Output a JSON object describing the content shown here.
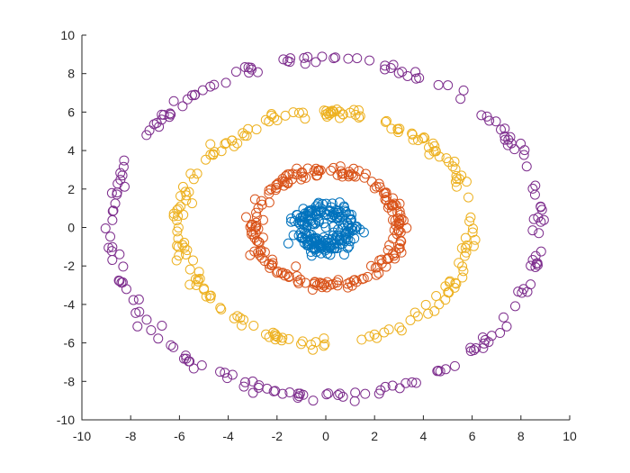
{
  "chart_data": {
    "type": "scatter",
    "title": "",
    "xlabel": "",
    "ylabel": "",
    "xlim": [
      -10,
      10
    ],
    "ylim": [
      -10,
      10
    ],
    "grid": false,
    "marker": "open-circle",
    "x_ticks": [
      -10,
      -8,
      -6,
      -4,
      -2,
      0,
      2,
      4,
      6,
      8,
      10
    ],
    "y_ticks": [
      -10,
      -8,
      -6,
      -4,
      -2,
      0,
      2,
      4,
      6,
      8,
      10
    ],
    "x_tick_labels": [
      "-10",
      "-8",
      "-6",
      "-4",
      "-2",
      "0",
      "2",
      "4",
      "6",
      "8",
      "10"
    ],
    "y_tick_labels": [
      "-10",
      "-8",
      "-6",
      "-4",
      "-2",
      "0",
      "2",
      "4",
      "6",
      "8",
      "10"
    ],
    "series": [
      {
        "color": "#0072BD",
        "center": [
          0,
          0
        ],
        "radius": 1.0,
        "spread": 0.25,
        "count": 200
      },
      {
        "color": "#D95319",
        "center": [
          0,
          0
        ],
        "radius": 3.0,
        "spread": 0.15,
        "count": 200
      },
      {
        "color": "#EDB120",
        "center": [
          0,
          0
        ],
        "radius": 6.0,
        "spread": 0.15,
        "count": 200
      },
      {
        "color": "#7E2F8E",
        "center": [
          0,
          0
        ],
        "radius": 8.8,
        "spread": 0.15,
        "count": 200
      }
    ]
  }
}
